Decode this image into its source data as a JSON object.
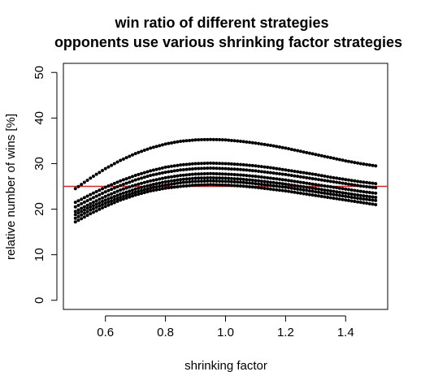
{
  "chart_data": {
    "type": "scatter",
    "title": "win ratio of different strategies",
    "subtitle": "opponents use various shrinking factor strategies",
    "xlabel": "shrinking factor",
    "ylabel": "relative number of wins [%]",
    "xlim": [
      0.46,
      1.54
    ],
    "ylim": [
      -2,
      52
    ],
    "xticks": [
      0.6,
      0.8,
      1.0,
      1.2,
      1.4
    ],
    "xtick_labels": [
      "0.6",
      "0.8",
      "1.0",
      "1.2",
      "1.4"
    ],
    "yticks": [
      0,
      10,
      20,
      30,
      40,
      50
    ],
    "ytick_labels": [
      "0",
      "10",
      "20",
      "30",
      "40",
      "50"
    ],
    "grid": false,
    "reference_line": {
      "y": 25,
      "color": "#d62728"
    },
    "point_color": "#000000",
    "series": [
      {
        "x": [
          0.5,
          0.55,
          0.6,
          0.65,
          0.7,
          0.75,
          0.8,
          0.85,
          0.9,
          0.95,
          1.0,
          1.05,
          1.1,
          1.15,
          1.2,
          1.25,
          1.3,
          1.35,
          1.4,
          1.45,
          1.5
        ],
        "values": [
          24.5,
          26.8,
          28.9,
          30.7,
          32.2,
          33.4,
          34.3,
          34.9,
          35.2,
          35.3,
          35.2,
          34.9,
          34.5,
          34.0,
          33.4,
          32.7,
          32.0,
          31.3,
          30.6,
          30.0,
          29.5
        ]
      },
      {
        "x": [
          0.5,
          0.55,
          0.6,
          0.65,
          0.7,
          0.75,
          0.8,
          0.85,
          0.9,
          0.95,
          1.0,
          1.05,
          1.1,
          1.15,
          1.2,
          1.25,
          1.3,
          1.35,
          1.4,
          1.45,
          1.5
        ],
        "values": [
          21.5,
          23.2,
          24.8,
          26.2,
          27.4,
          28.4,
          29.2,
          29.7,
          30.0,
          30.1,
          30.0,
          29.8,
          29.5,
          29.1,
          28.6,
          28.1,
          27.6,
          27.0,
          26.5,
          26.0,
          25.6
        ]
      },
      {
        "x": [
          0.5,
          0.55,
          0.6,
          0.65,
          0.7,
          0.75,
          0.8,
          0.85,
          0.9,
          0.95,
          1.0,
          1.05,
          1.1,
          1.15,
          1.2,
          1.25,
          1.3,
          1.35,
          1.4,
          1.45,
          1.5
        ],
        "values": [
          20.5,
          22.2,
          23.8,
          25.2,
          26.4,
          27.4,
          28.1,
          28.6,
          28.9,
          29.0,
          28.9,
          28.7,
          28.4,
          28.0,
          27.6,
          27.1,
          26.6,
          26.1,
          25.6,
          25.1,
          24.7
        ]
      },
      {
        "x": [
          0.5,
          0.55,
          0.6,
          0.65,
          0.7,
          0.75,
          0.8,
          0.85,
          0.9,
          0.95,
          1.0,
          1.05,
          1.1,
          1.15,
          1.2,
          1.25,
          1.3,
          1.35,
          1.4,
          1.45,
          1.5
        ],
        "values": [
          19.5,
          21.2,
          22.8,
          24.2,
          25.3,
          26.2,
          26.9,
          27.4,
          27.7,
          27.8,
          27.7,
          27.5,
          27.2,
          26.8,
          26.4,
          25.9,
          25.4,
          24.9,
          24.4,
          23.9,
          23.5
        ]
      },
      {
        "x": [
          0.5,
          0.55,
          0.6,
          0.65,
          0.7,
          0.75,
          0.8,
          0.85,
          0.9,
          0.95,
          1.0,
          1.05,
          1.1,
          1.15,
          1.2,
          1.25,
          1.3,
          1.35,
          1.4,
          1.45,
          1.5
        ],
        "values": [
          18.8,
          20.5,
          22.0,
          23.3,
          24.4,
          25.3,
          26.0,
          26.5,
          26.8,
          26.9,
          26.8,
          26.6,
          26.3,
          25.9,
          25.5,
          25.0,
          24.5,
          24.0,
          23.5,
          23.0,
          22.6
        ]
      },
      {
        "x": [
          0.5,
          0.55,
          0.6,
          0.65,
          0.7,
          0.75,
          0.8,
          0.85,
          0.9,
          0.95,
          1.0,
          1.05,
          1.1,
          1.15,
          1.2,
          1.25,
          1.3,
          1.35,
          1.4,
          1.45,
          1.5
        ],
        "values": [
          18.0,
          19.8,
          21.3,
          22.6,
          23.7,
          24.6,
          25.3,
          25.8,
          26.1,
          26.2,
          26.1,
          25.9,
          25.6,
          25.2,
          24.8,
          24.3,
          23.8,
          23.3,
          22.8,
          22.3,
          21.9
        ]
      },
      {
        "x": [
          0.5,
          0.55,
          0.6,
          0.65,
          0.7,
          0.75,
          0.8,
          0.85,
          0.9,
          0.95,
          1.0,
          1.05,
          1.1,
          1.15,
          1.2,
          1.25,
          1.3,
          1.35,
          1.4,
          1.45,
          1.5
        ],
        "values": [
          17.2,
          19.0,
          20.6,
          22.0,
          23.1,
          24.0,
          24.6,
          25.0,
          25.3,
          25.4,
          25.3,
          25.1,
          24.8,
          24.4,
          24.0,
          23.5,
          23.0,
          22.5,
          22.0,
          21.5,
          21.0
        ]
      }
    ]
  }
}
